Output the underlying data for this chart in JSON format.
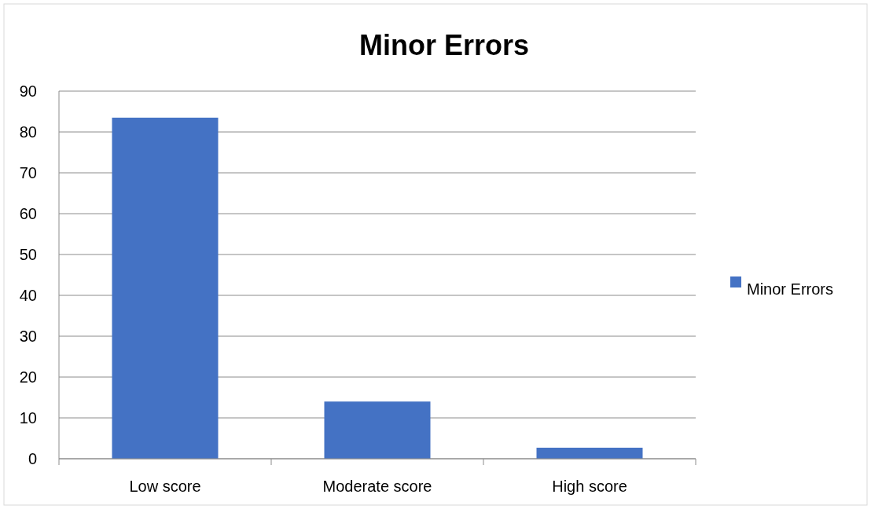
{
  "chart_data": {
    "type": "bar",
    "title": "Minor Errors",
    "categories": [
      "Low score",
      "Moderate score",
      "High score"
    ],
    "series": [
      {
        "name": "Minor Errors",
        "color": "#4472c4",
        "values": [
          83.5,
          14,
          2.7
        ]
      }
    ],
    "ylim": [
      0,
      90
    ],
    "yticks": [
      0,
      10,
      20,
      30,
      40,
      50,
      60,
      70,
      80,
      90
    ],
    "grid": "y",
    "legend": "right"
  }
}
